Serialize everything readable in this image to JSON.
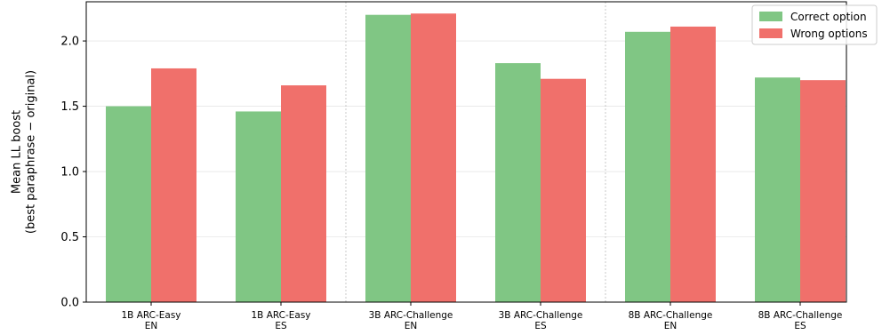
{
  "chart_data": {
    "type": "bar",
    "categories": [
      [
        "1B ARC-Easy",
        "EN"
      ],
      [
        "1B ARC-Easy",
        "ES"
      ],
      [
        "3B ARC-Challenge",
        "EN"
      ],
      [
        "3B ARC-Challenge",
        "ES"
      ],
      [
        "8B ARC-Challenge",
        "EN"
      ],
      [
        "8B ARC-Challenge",
        "ES"
      ]
    ],
    "series": [
      {
        "name": "Correct option",
        "color": "#80c684",
        "values": [
          1.5,
          1.46,
          2.2,
          1.83,
          2.07,
          1.72
        ]
      },
      {
        "name": "Wrong options",
        "color": "#f0706b",
        "values": [
          1.79,
          1.66,
          2.21,
          1.71,
          2.11,
          1.7
        ]
      }
    ],
    "title": "",
    "xlabel": "",
    "ylabel": [
      "Mean LL boost",
      "(best paraphrase − original)"
    ],
    "ylim": [
      0,
      2.3
    ],
    "yticks": [
      "0.0",
      "0.5",
      "1.0",
      "1.5",
      "2.0"
    ],
    "grid": "horizontal",
    "group_separators_after": [
      2,
      4
    ],
    "legend_position": "top-right"
  }
}
